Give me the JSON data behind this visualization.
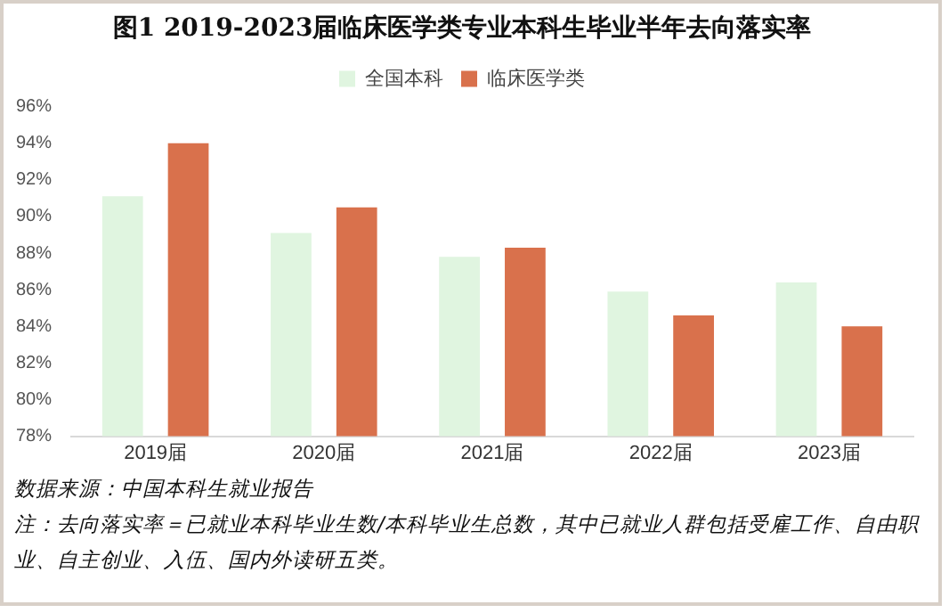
{
  "chart_data": {
    "type": "bar",
    "title": "图1 2019-2023届临床医学类专业本科生毕业半年去向落实率",
    "categories": [
      "2019届",
      "2020届",
      "2021届",
      "2022届",
      "2023届"
    ],
    "series": [
      {
        "name": "全国本科",
        "color": "#e0f5e0",
        "values": [
          91.1,
          89.1,
          87.8,
          85.9,
          86.4
        ]
      },
      {
        "name": "临床医学类",
        "color": "#d9714c",
        "values": [
          94.0,
          90.5,
          88.3,
          84.6,
          84.0
        ]
      }
    ],
    "ylim": [
      78,
      96
    ],
    "yticks": [
      {
        "value": 78,
        "label": "78%"
      },
      {
        "value": 80,
        "label": "80%"
      },
      {
        "value": 82,
        "label": "82%"
      },
      {
        "value": 84,
        "label": "84%"
      },
      {
        "value": 86,
        "label": "86%"
      },
      {
        "value": 88,
        "label": "88%"
      },
      {
        "value": 90,
        "label": "90%"
      },
      {
        "value": 92,
        "label": "92%"
      },
      {
        "value": 94,
        "label": "94%"
      },
      {
        "value": 96,
        "label": "96%"
      }
    ],
    "grid": false,
    "legend": "top",
    "annotations": [
      "数据来源：中国本科生就业报告",
      "注：去向落实率＝已就业本科毕业生数/本科毕业生总数，其中已就业人群包括受雇工作、自由职业、自主创业、入伍、国内外读研五类。"
    ]
  }
}
